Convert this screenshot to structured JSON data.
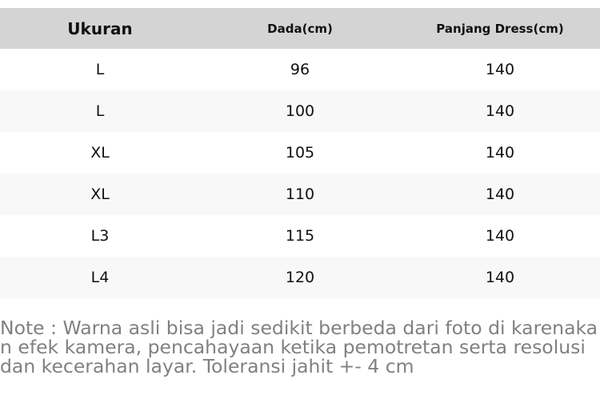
{
  "table": {
    "headers": [
      "Ukuran",
      "Dada(cm)",
      "Panjang Dress(cm)"
    ],
    "rows": [
      [
        "L",
        "96",
        "140"
      ],
      [
        "L",
        "100",
        "140"
      ],
      [
        "XL",
        "105",
        "140"
      ],
      [
        "XL",
        "110",
        "140"
      ],
      [
        "L3",
        "115",
        "140"
      ],
      [
        "L4",
        "120",
        "140"
      ]
    ]
  },
  "note": "Note : Warna asli bisa jadi sedikit berbeda dari foto di karenakan efek kamera, pencahayaan ketika pemotretan serta resolusi dan kecerahan layar. Toleransi jahit +- 4 cm",
  "colors": {
    "header_bg": "#d4d4d4",
    "alt_row_bg": "#f8f8f8",
    "note_text": "#808080"
  }
}
